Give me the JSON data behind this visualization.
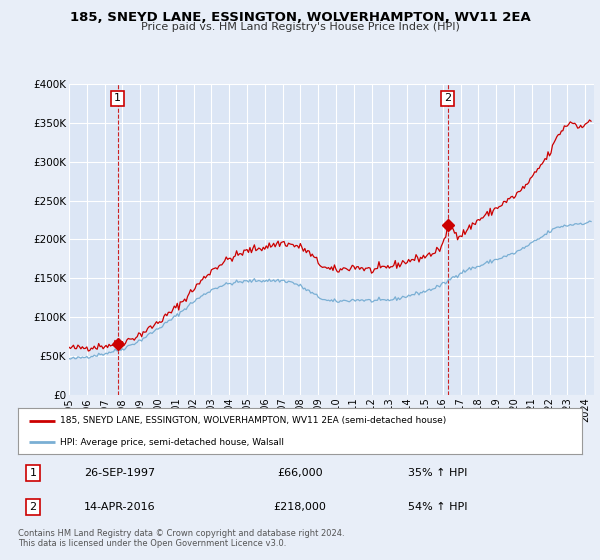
{
  "title": "185, SNEYD LANE, ESSINGTON, WOLVERHAMPTON, WV11 2EA",
  "subtitle": "Price paid vs. HM Land Registry's House Price Index (HPI)",
  "bg_color": "#e8eef8",
  "plot_bg_color": "#dce6f5",
  "grid_color": "#ffffff",
  "red_line_color": "#cc0000",
  "blue_line_color": "#7aafd4",
  "marker_color": "#cc0000",
  "vline_color": "#cc2222",
  "ylim": [
    0,
    400000
  ],
  "xlim_start": 1995.0,
  "xlim_end": 2024.5,
  "yticks": [
    0,
    50000,
    100000,
    150000,
    200000,
    250000,
    300000,
    350000,
    400000
  ],
  "ytick_labels": [
    "£0",
    "£50K",
    "£100K",
    "£150K",
    "£200K",
    "£250K",
    "£300K",
    "£350K",
    "£400K"
  ],
  "xticks": [
    1995,
    1996,
    1997,
    1998,
    1999,
    2000,
    2001,
    2002,
    2003,
    2004,
    2005,
    2006,
    2007,
    2008,
    2009,
    2010,
    2011,
    2012,
    2013,
    2014,
    2015,
    2016,
    2017,
    2018,
    2019,
    2020,
    2021,
    2022,
    2023,
    2024
  ],
  "marker1_x": 1997.73,
  "marker1_y": 66000,
  "marker2_x": 2016.28,
  "marker2_y": 218000,
  "annotation1": "1",
  "annotation2": "2",
  "legend_label_red": "185, SNEYD LANE, ESSINGTON, WOLVERHAMPTON, WV11 2EA (semi-detached house)",
  "legend_label_blue": "HPI: Average price, semi-detached house, Walsall",
  "table_row1": [
    "1",
    "26-SEP-1997",
    "£66,000",
    "35% ↑ HPI"
  ],
  "table_row2": [
    "2",
    "14-APR-2016",
    "£218,000",
    "54% ↑ HPI"
  ],
  "footnote1": "Contains HM Land Registry data © Crown copyright and database right 2024.",
  "footnote2": "This data is licensed under the Open Government Licence v3.0."
}
